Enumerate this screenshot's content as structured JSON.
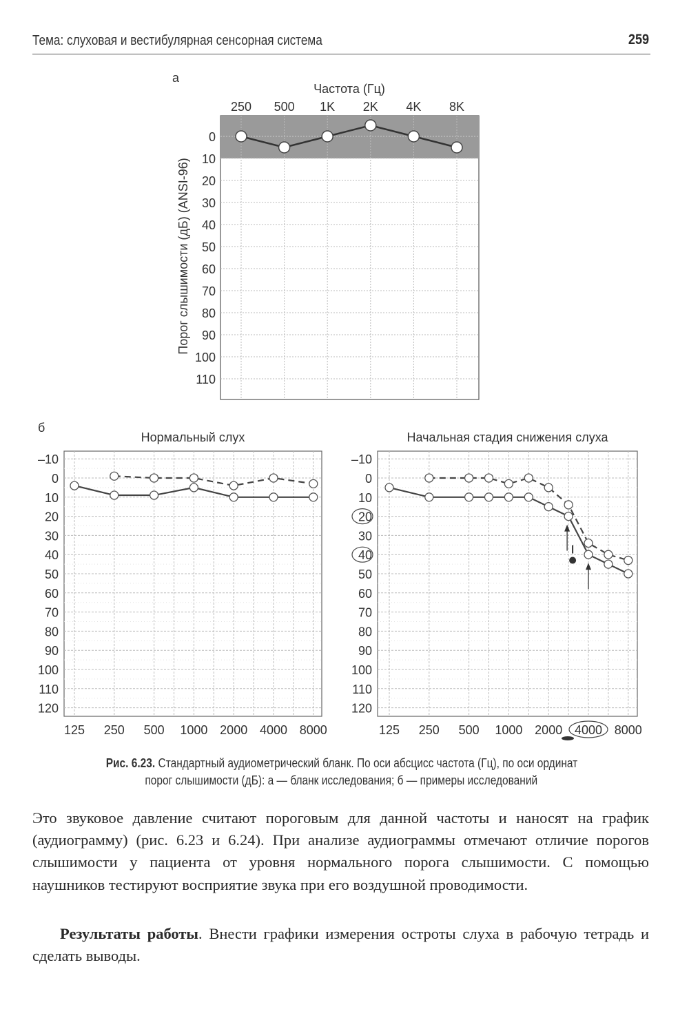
{
  "header": {
    "title": "Тема: слуховая и вестибулярная сенсорная система",
    "page_number": "259"
  },
  "figure": {
    "panel_a_label": "а",
    "panel_b_label": "б",
    "caption_ref": "Рис. 6.23.",
    "caption_line1": "Стандартный аудиометрический бланк. По оси абсцисс частота (Гц), по оси ординат",
    "caption_line2": "порог слышимости (дБ): а — бланк исследования; б — примеры исследований"
  },
  "chart_data": [
    {
      "type": "line",
      "title": "",
      "xlabel": "Частота (Гц)",
      "ylabel": "Порог слышимости (дБ) (ANSI-96)",
      "categories": [
        "250",
        "500",
        "1K",
        "2K",
        "4K",
        "8K"
      ],
      "y_ticks": [
        0,
        10,
        20,
        30,
        40,
        50,
        60,
        70,
        80,
        90,
        100,
        110
      ],
      "ylim": [
        -10,
        120
      ],
      "y_inverted": true,
      "shaded_band": [
        -10,
        10
      ],
      "grid": true,
      "series": [
        {
          "values": [
            0,
            5,
            0,
            -5,
            0,
            5
          ],
          "style": "solid",
          "marker": "open-circle"
        }
      ]
    },
    {
      "type": "line",
      "title": "Нормальный слух",
      "x_tick_labels": [
        "125",
        "250",
        "500",
        "1000",
        "2000",
        "4000",
        "8000"
      ],
      "y_ticks": [
        -10,
        0,
        10,
        20,
        30,
        40,
        50,
        60,
        70,
        80,
        90,
        100,
        110,
        120
      ],
      "ylim": [
        -10,
        120
      ],
      "y_inverted": true,
      "grid": true,
      "series": [
        {
          "style": "solid",
          "x": [
            125,
            250,
            500,
            1000,
            2000,
            4000,
            8000
          ],
          "values": [
            4,
            9,
            9,
            5,
            10,
            10,
            10
          ]
        },
        {
          "style": "dashed",
          "x": [
            250,
            500,
            1000,
            2000,
            4000,
            8000
          ],
          "values": [
            -1,
            0,
            0,
            4,
            0,
            3
          ]
        }
      ]
    },
    {
      "type": "line",
      "title": "Начальная стадия снижения слуха",
      "x_tick_labels": [
        "125",
        "250",
        "500",
        "1000",
        "2000",
        "4000",
        "8000"
      ],
      "circled_x_tick": "4000",
      "y_ticks": [
        -10,
        0,
        10,
        20,
        30,
        40,
        50,
        60,
        70,
        80,
        90,
        100,
        110,
        120
      ],
      "circled_y_ticks": [
        20,
        40
      ],
      "ylim": [
        -10,
        120
      ],
      "y_inverted": true,
      "grid": true,
      "series": [
        {
          "style": "solid",
          "x": [
            125,
            250,
            500,
            750,
            1000,
            1500,
            2000,
            3000,
            4000,
            6000,
            8000
          ],
          "values": [
            5,
            10,
            10,
            10,
            10,
            10,
            15,
            20,
            40,
            45,
            50
          ]
        },
        {
          "style": "dashed",
          "x": [
            250,
            500,
            750,
            1000,
            1500,
            2000,
            3000,
            4000,
            6000,
            8000
          ],
          "values": [
            0,
            0,
            0,
            3,
            0,
            5,
            14,
            34,
            40,
            43
          ]
        }
      ],
      "annotations": [
        {
          "type": "filled-dot",
          "x": 3000,
          "y": 43
        },
        {
          "type": "arrow-up",
          "x": 3000,
          "y": 20
        },
        {
          "type": "arrow-up",
          "x": 4000,
          "y": 40
        }
      ]
    }
  ],
  "text": {
    "p1": "Это звуковое давление считают пороговым для данной частоты и наносят на график (аудиограмму) (рис. 6.23 и 6.24). При анализе аудиограммы отмечают отличие порогов слышимости у пациента от уровня нормального порога слышимости. С помощью наушников тестируют восприятие звука при его воздушной проводимости.",
    "p2_bold": "Результаты работы",
    "p2": ". Внести графики измерения остроты слуха в рабочую тетрадь и сделать выводы."
  }
}
